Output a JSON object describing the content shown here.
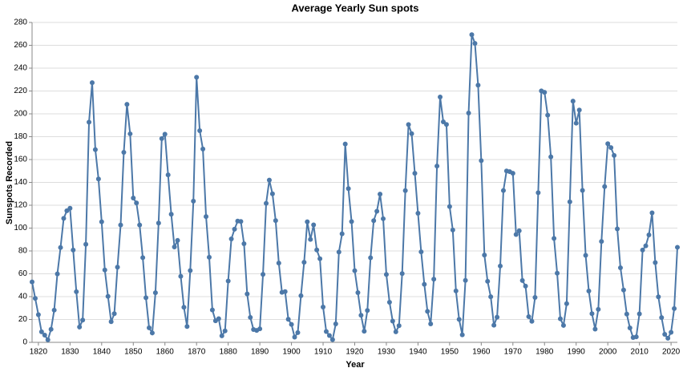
{
  "chart_data": {
    "type": "line",
    "title": "Average Yearly Sun spots",
    "x_label": "Year",
    "y_label": "Sunspots Recorded",
    "color": "#4c78a8",
    "grid": true,
    "xlim": [
      1818,
      2022
    ],
    "xticks": [
      1820,
      1830,
      1840,
      1850,
      1860,
      1870,
      1880,
      1890,
      1900,
      1910,
      1920,
      1930,
      1940,
      1950,
      1960,
      1970,
      1980,
      1990,
      2000,
      2010,
      2020
    ],
    "ylim": [
      0,
      280
    ],
    "yticks": [
      0,
      20,
      40,
      60,
      80,
      100,
      120,
      140,
      160,
      180,
      200,
      220,
      240,
      260,
      280
    ],
    "x": [
      1818,
      1819,
      1820,
      1821,
      1822,
      1823,
      1824,
      1825,
      1826,
      1827,
      1828,
      1829,
      1830,
      1831,
      1832,
      1833,
      1834,
      1835,
      1836,
      1837,
      1838,
      1839,
      1840,
      1841,
      1842,
      1843,
      1844,
      1845,
      1846,
      1847,
      1848,
      1849,
      1850,
      1851,
      1852,
      1853,
      1854,
      1855,
      1856,
      1857,
      1858,
      1859,
      1860,
      1861,
      1862,
      1863,
      1864,
      1865,
      1866,
      1867,
      1868,
      1869,
      1870,
      1871,
      1872,
      1873,
      1874,
      1875,
      1876,
      1877,
      1878,
      1879,
      1880,
      1881,
      1882,
      1883,
      1884,
      1885,
      1886,
      1887,
      1888,
      1889,
      1890,
      1891,
      1892,
      1893,
      1894,
      1895,
      1896,
      1897,
      1898,
      1899,
      1900,
      1901,
      1902,
      1903,
      1904,
      1905,
      1906,
      1907,
      1908,
      1909,
      1910,
      1911,
      1912,
      1913,
      1914,
      1915,
      1916,
      1917,
      1918,
      1919,
      1920,
      1921,
      1922,
      1923,
      1924,
      1925,
      1926,
      1927,
      1928,
      1929,
      1930,
      1931,
      1932,
      1933,
      1934,
      1935,
      1936,
      1937,
      1938,
      1939,
      1940,
      1941,
      1942,
      1943,
      1944,
      1945,
      1946,
      1947,
      1948,
      1949,
      1950,
      1951,
      1952,
      1953,
      1954,
      1955,
      1956,
      1957,
      1958,
      1959,
      1960,
      1961,
      1962,
      1963,
      1964,
      1965,
      1966,
      1967,
      1968,
      1969,
      1970,
      1971,
      1972,
      1973,
      1974,
      1975,
      1976,
      1977,
      1978,
      1979,
      1980,
      1981,
      1982,
      1983,
      1984,
      1985,
      1986,
      1987,
      1988,
      1989,
      1990,
      1991,
      1992,
      1993,
      1994,
      1995,
      1996,
      1997,
      1998,
      1999,
      2000,
      2001,
      2002,
      2003,
      2004,
      2005,
      2006,
      2007,
      2008,
      2009,
      2010,
      2011,
      2012,
      2013,
      2014,
      2015,
      2016,
      2017,
      2018,
      2019,
      2020,
      2021,
      2022
    ],
    "values": [
      52.9,
      38.5,
      24.2,
      9.2,
      6.3,
      2.2,
      11.4,
      28.2,
      59.9,
      83.0,
      108.5,
      115.2,
      117.4,
      80.8,
      44.3,
      13.4,
      19.5,
      85.8,
      192.7,
      227.3,
      168.7,
      143.0,
      105.5,
      63.3,
      40.3,
      18.1,
      25.1,
      65.8,
      102.7,
      166.3,
      208.3,
      182.5,
      126.3,
      122.0,
      102.7,
      74.1,
      39.0,
      12.7,
      8.2,
      43.4,
      104.4,
      178.3,
      182.2,
      146.6,
      112.1,
      83.5,
      89.2,
      57.8,
      30.7,
      13.9,
      62.8,
      123.6,
      232.0,
      185.3,
      169.2,
      110.1,
      74.5,
      28.3,
      18.9,
      20.7,
      5.7,
      10.0,
      53.7,
      90.5,
      99.0,
      106.1,
      105.8,
      86.3,
      42.4,
      21.8,
      11.2,
      10.4,
      11.8,
      59.5,
      121.7,
      142.0,
      130.0,
      106.6,
      69.4,
      43.8,
      44.4,
      20.2,
      15.7,
      4.6,
      8.5,
      40.8,
      70.1,
      105.5,
      90.1,
      102.8,
      80.9,
      73.2,
      30.9,
      9.5,
      6.0,
      2.4,
      16.1,
      79.0,
      95.0,
      173.6,
      134.6,
      105.7,
      62.7,
      43.5,
      23.7,
      9.7,
      27.9,
      74.0,
      106.5,
      114.7,
      129.7,
      108.2,
      59.4,
      35.1,
      18.6,
      9.2,
      14.6,
      60.2,
      132.8,
      190.6,
      182.6,
      148.0,
      113.0,
      79.2,
      50.8,
      27.1,
      16.1,
      55.3,
      154.3,
      214.7,
      193.0,
      190.7,
      118.9,
      98.3,
      45.0,
      20.1,
      6.6,
      54.2,
      200.7,
      269.3,
      261.7,
      225.1,
      159.0,
      76.4,
      53.4,
      39.9,
      15.0,
      22.0,
      66.8,
      132.9,
      150.0,
      149.4,
      148.0,
      94.4,
      97.6,
      54.1,
      49.2,
      22.5,
      18.4,
      39.3,
      131.0,
      220.1,
      218.9,
      198.9,
      162.4,
      91.0,
      60.5,
      20.6,
      14.8,
      33.9,
      123.0,
      211.1,
      191.8,
      203.3,
      133.0,
      76.1,
      44.9,
      25.1,
      11.6,
      28.9,
      88.3,
      136.3,
      173.9,
      170.4,
      163.6,
      99.3,
      65.3,
      45.8,
      24.7,
      12.6,
      4.2,
      4.8,
      24.9,
      80.8,
      84.5,
      94.0,
      113.3,
      69.8,
      39.8,
      21.7,
      7.0,
      3.6,
      8.8,
      29.6,
      83.2
    ]
  }
}
